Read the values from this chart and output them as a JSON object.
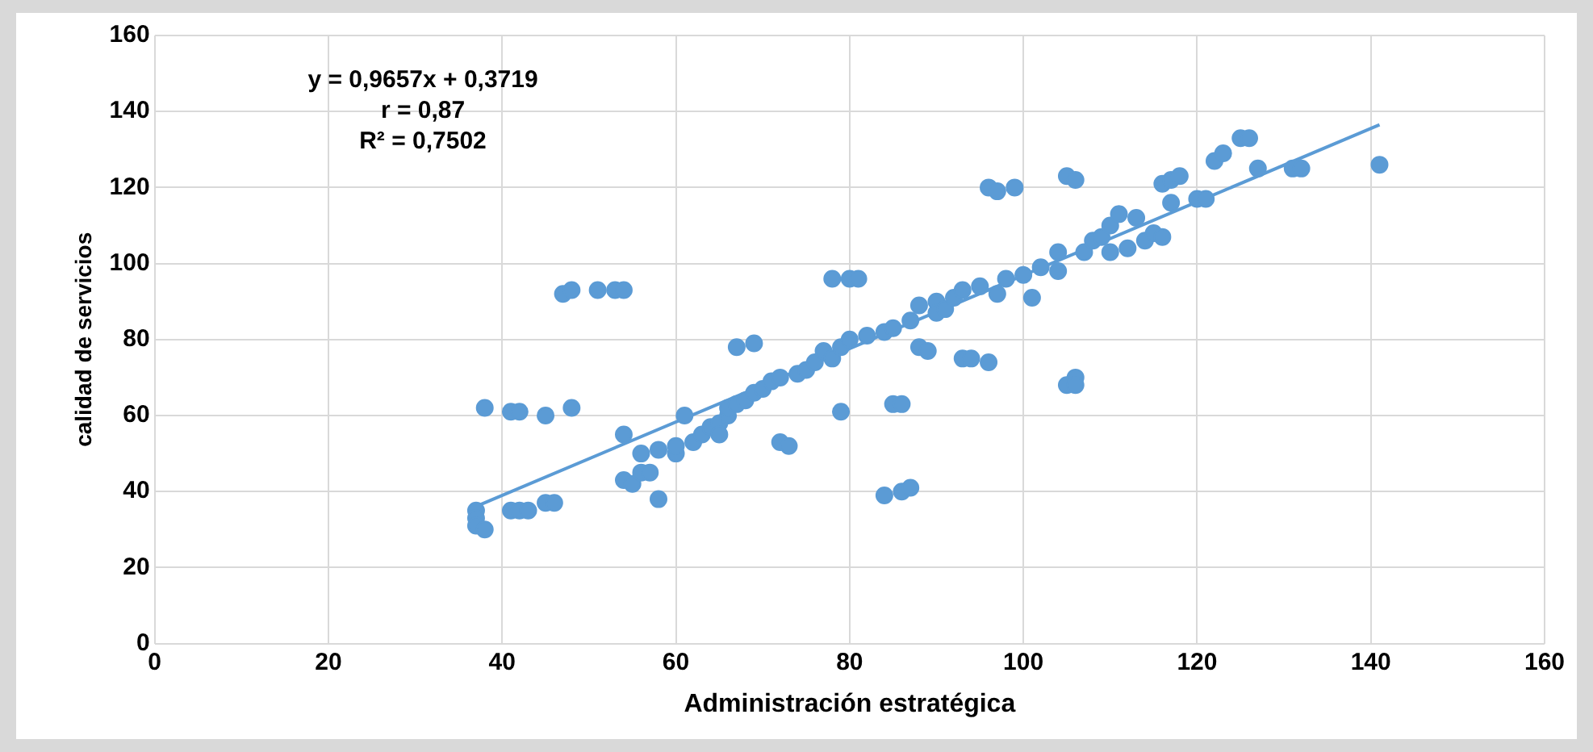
{
  "chart_data": {
    "type": "scatter",
    "xlabel": "Administración estratégica",
    "ylabel": "calidad de servicios",
    "annotations": [
      "y = 0,9657x + 0,3719",
      "r = 0,87",
      "R² = 0,7502"
    ],
    "xlim": [
      0,
      160
    ],
    "xticks": [
      0,
      20,
      40,
      60,
      80,
      100,
      120,
      140,
      160
    ],
    "ylim": [
      0,
      160
    ],
    "yticks": [
      0,
      20,
      40,
      60,
      80,
      100,
      120,
      140,
      160
    ],
    "grid": true,
    "legend": false,
    "marker": "circle",
    "series": [
      {
        "type": "scatter",
        "color": "#5b9bd5",
        "x": [
          37,
          37,
          37,
          38,
          38,
          41,
          42,
          43,
          41,
          42,
          45,
          45,
          46,
          47,
          48,
          48,
          51,
          53,
          54,
          54,
          54,
          55,
          56,
          57,
          56,
          58,
          58,
          60,
          60,
          61,
          62,
          63,
          64,
          65,
          65,
          66,
          66,
          67,
          67,
          68,
          69,
          69,
          70,
          71,
          72,
          73,
          72,
          74,
          75,
          76,
          77,
          78,
          79,
          78,
          80,
          81,
          79,
          80,
          82,
          84,
          85,
          84,
          86,
          87,
          85,
          86,
          87,
          88,
          88,
          89,
          90,
          90,
          91,
          92,
          93,
          93,
          94,
          95,
          96,
          96,
          97,
          99,
          97,
          98,
          100,
          101,
          102,
          104,
          104,
          105,
          106,
          106,
          105,
          106,
          107,
          108,
          109,
          110,
          110,
          111,
          113,
          112,
          114,
          115,
          116,
          116,
          117,
          118,
          117,
          120,
          121,
          122,
          123,
          125,
          126,
          127,
          131,
          132,
          141
        ],
        "values": [
          35,
          33,
          31,
          30,
          62,
          35,
          35,
          35,
          61,
          61,
          60,
          37,
          37,
          92,
          93,
          62,
          93,
          93,
          93,
          55,
          43,
          42,
          45,
          45,
          50,
          38,
          51,
          50,
          52,
          60,
          53,
          55,
          57,
          58,
          55,
          60,
          62,
          63,
          78,
          64,
          79,
          66,
          67,
          69,
          53,
          52,
          70,
          71,
          72,
          74,
          77,
          75,
          61,
          96,
          96,
          96,
          78,
          80,
          81,
          82,
          83,
          39,
          40,
          41,
          63,
          63,
          85,
          89,
          78,
          77,
          90,
          87,
          88,
          91,
          93,
          75,
          75,
          94,
          74,
          120,
          119,
          120,
          92,
          96,
          97,
          91,
          99,
          98,
          103,
          68,
          70,
          68,
          123,
          122,
          103,
          106,
          107,
          110,
          103,
          113,
          112,
          104,
          106,
          108,
          107,
          121,
          122,
          123,
          116,
          117,
          117,
          127,
          129,
          133,
          133,
          125,
          125,
          125,
          126
        ]
      },
      {
        "type": "line",
        "color": "#5b9bd5",
        "marker": "none",
        "x": [
          37,
          141
        ],
        "values": [
          36.1,
          136.5
        ]
      }
    ]
  }
}
